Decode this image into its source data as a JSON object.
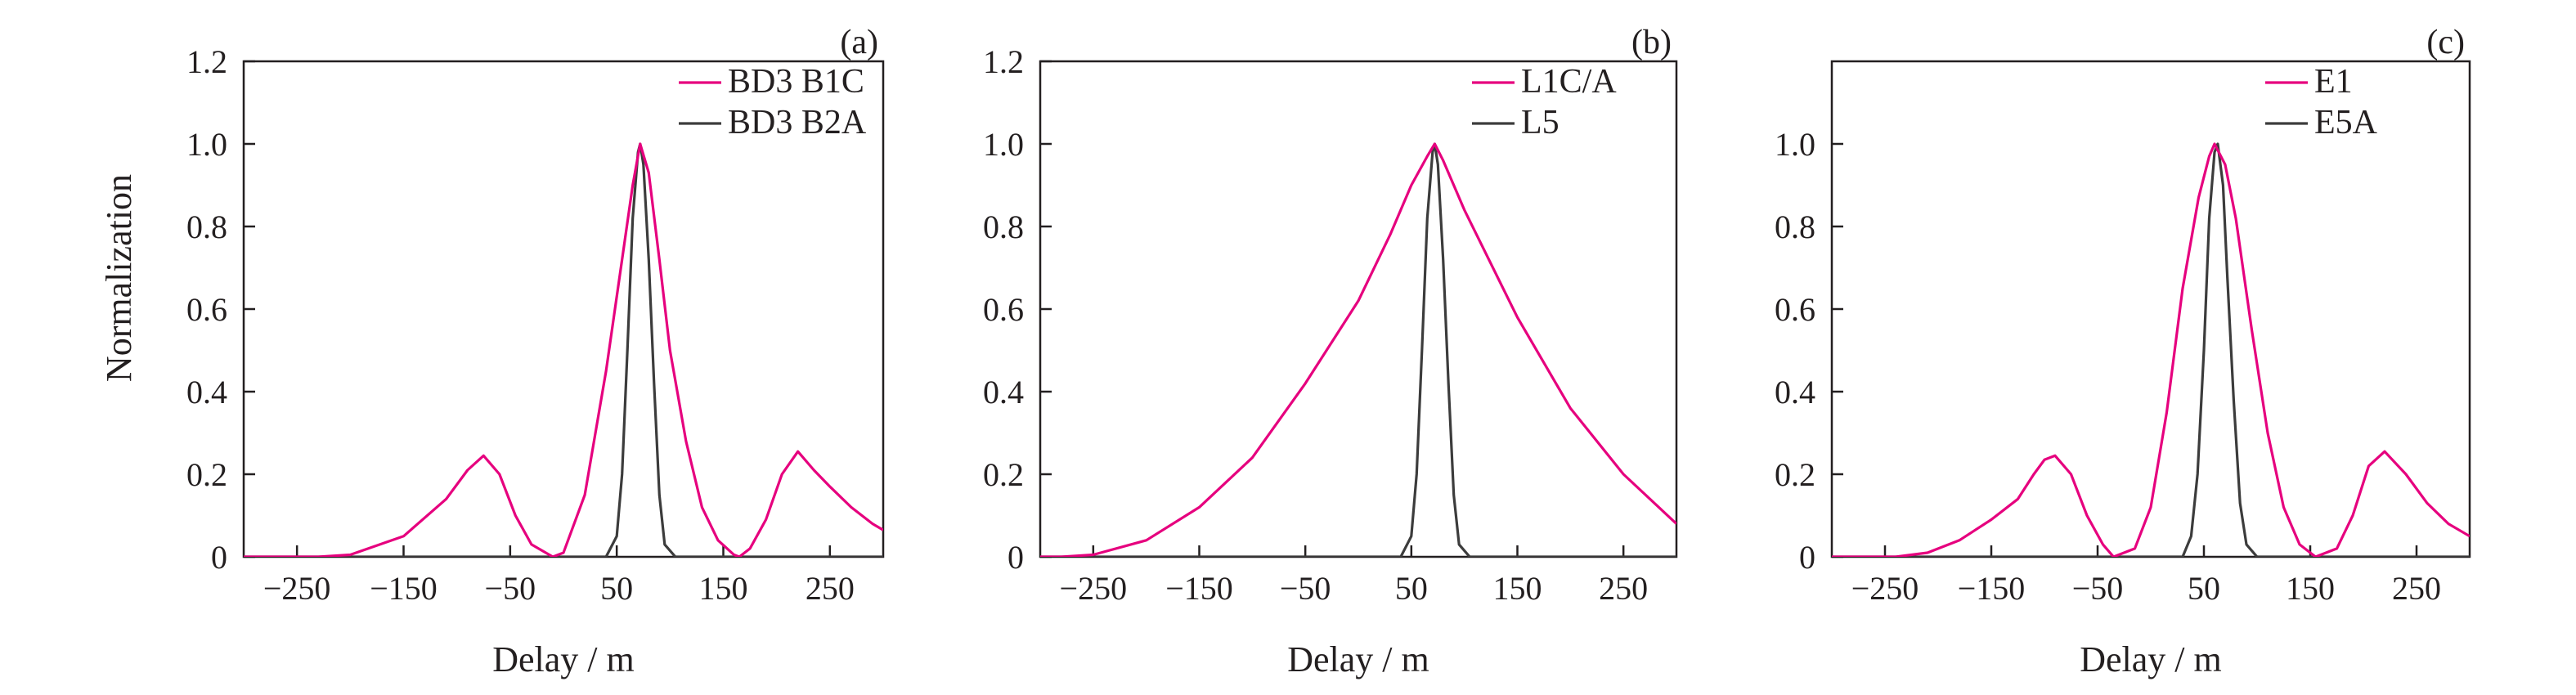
{
  "figure": {
    "y_axis_label": "Normalization",
    "x_axis_label": "Delay / m"
  },
  "chart_data": [
    {
      "type": "line",
      "panel_label": "(a)",
      "xlabel": "Delay / m",
      "ylabel": "Normalization",
      "xlim": [
        -300,
        300
      ],
      "ylim": [
        0,
        1.2
      ],
      "xticks": [
        -250,
        -150,
        -50,
        50,
        150,
        250
      ],
      "xtick_labels": [
        "−250",
        "−150",
        "−50",
        "50",
        "150",
        "250"
      ],
      "yticks": [
        0,
        0.2,
        0.4,
        0.6,
        0.8,
        1.0,
        1.2
      ],
      "ytick_labels": [
        "0",
        "0.2",
        "0.4",
        "0.6",
        "0.8",
        "1.0",
        "1.2"
      ],
      "legend_position": "top-right",
      "series": [
        {
          "name": "BD3 B1C",
          "color": "#e6007e",
          "x": [
            -300,
            -230,
            -200,
            -150,
            -110,
            -90,
            -75,
            -60,
            -45,
            -30,
            -10,
            0,
            20,
            40,
            55,
            65,
            72,
            80,
            90,
            100,
            115,
            130,
            145,
            160,
            165,
            175,
            190,
            205,
            220,
            235,
            250,
            270,
            290,
            300
          ],
          "y": [
            0,
            0,
            0.005,
            0.05,
            0.14,
            0.21,
            0.245,
            0.2,
            0.1,
            0.03,
            0,
            0.01,
            0.15,
            0.45,
            0.72,
            0.9,
            1.0,
            0.93,
            0.72,
            0.5,
            0.28,
            0.12,
            0.04,
            0.005,
            0,
            0.02,
            0.09,
            0.2,
            0.255,
            0.21,
            0.17,
            0.12,
            0.08,
            0.065
          ]
        },
        {
          "name": "BD3 B2A",
          "color": "#3c3c3c",
          "x": [
            -300,
            40,
            50,
            55,
            60,
            65,
            70,
            72,
            75,
            80,
            85,
            90,
            95,
            105,
            300
          ],
          "y": [
            0,
            0,
            0.05,
            0.2,
            0.5,
            0.82,
            0.98,
            1.0,
            0.95,
            0.72,
            0.42,
            0.15,
            0.03,
            0,
            0
          ]
        }
      ]
    },
    {
      "type": "line",
      "panel_label": "(b)",
      "xlabel": "Delay / m",
      "ylabel": "",
      "xlim": [
        -300,
        300
      ],
      "ylim": [
        0,
        1.2
      ],
      "xticks": [
        -250,
        -150,
        -50,
        50,
        150,
        250
      ],
      "xtick_labels": [
        "−250",
        "−150",
        "−50",
        "50",
        "150",
        "250"
      ],
      "yticks": [
        0,
        0.2,
        0.4,
        0.6,
        0.8,
        1.0,
        1.2
      ],
      "ytick_labels": [
        "0",
        "0.2",
        "0.4",
        "0.6",
        "0.8",
        "1.0",
        "1.2"
      ],
      "legend_position": "top-right",
      "series": [
        {
          "name": "L1C/A",
          "color": "#e6007e",
          "x": [
            -300,
            -280,
            -250,
            -200,
            -150,
            -100,
            -50,
            0,
            30,
            50,
            65,
            72,
            80,
            100,
            150,
            200,
            250,
            300
          ],
          "y": [
            0,
            0,
            0.005,
            0.04,
            0.12,
            0.24,
            0.42,
            0.62,
            0.78,
            0.9,
            0.97,
            1.0,
            0.96,
            0.84,
            0.58,
            0.36,
            0.2,
            0.08
          ]
        },
        {
          "name": "L5",
          "color": "#3c3c3c",
          "x": [
            -300,
            40,
            50,
            55,
            60,
            65,
            70,
            72,
            75,
            80,
            85,
            90,
            95,
            105,
            300
          ],
          "y": [
            0,
            0,
            0.05,
            0.2,
            0.5,
            0.82,
            0.98,
            1.0,
            0.95,
            0.72,
            0.42,
            0.15,
            0.03,
            0,
            0
          ]
        }
      ]
    },
    {
      "type": "line",
      "panel_label": "(c)",
      "xlabel": "Delay / m",
      "ylabel": "",
      "xlim": [
        -300,
        300
      ],
      "ylim": [
        0,
        1.2
      ],
      "xticks": [
        -250,
        -150,
        -50,
        50,
        150,
        250
      ],
      "xtick_labels": [
        "−250",
        "−150",
        "−50",
        "50",
        "150",
        "250"
      ],
      "yticks": [
        0,
        0.2,
        0.4,
        0.6,
        0.8,
        1.0
      ],
      "ytick_labels": [
        "0",
        "0.2",
        "0.4",
        "0.6",
        "0.8",
        "1.0"
      ],
      "legend_position": "top-right",
      "series": [
        {
          "name": "E1",
          "color": "#e6007e",
          "x": [
            -300,
            -240,
            -210,
            -180,
            -150,
            -125,
            -110,
            -100,
            -90,
            -75,
            -60,
            -45,
            -35,
            -15,
            0,
            15,
            30,
            45,
            55,
            60,
            70,
            80,
            95,
            110,
            125,
            140,
            155,
            175,
            190,
            205,
            220,
            240,
            260,
            280,
            300
          ],
          "y": [
            0,
            0,
            0.01,
            0.04,
            0.09,
            0.14,
            0.2,
            0.235,
            0.245,
            0.2,
            0.1,
            0.03,
            0,
            0.02,
            0.12,
            0.35,
            0.65,
            0.87,
            0.97,
            1.0,
            0.95,
            0.82,
            0.55,
            0.3,
            0.12,
            0.03,
            0,
            0.02,
            0.1,
            0.22,
            0.255,
            0.2,
            0.13,
            0.08,
            0.05
          ]
        },
        {
          "name": "E5A",
          "color": "#3c3c3c",
          "x": [
            -300,
            30,
            38,
            44,
            50,
            55,
            60,
            63,
            68,
            72,
            78,
            84,
            90,
            100,
            300
          ],
          "y": [
            0,
            0,
            0.05,
            0.2,
            0.5,
            0.82,
            0.98,
            1.0,
            0.9,
            0.68,
            0.38,
            0.13,
            0.03,
            0,
            0
          ]
        }
      ]
    }
  ]
}
